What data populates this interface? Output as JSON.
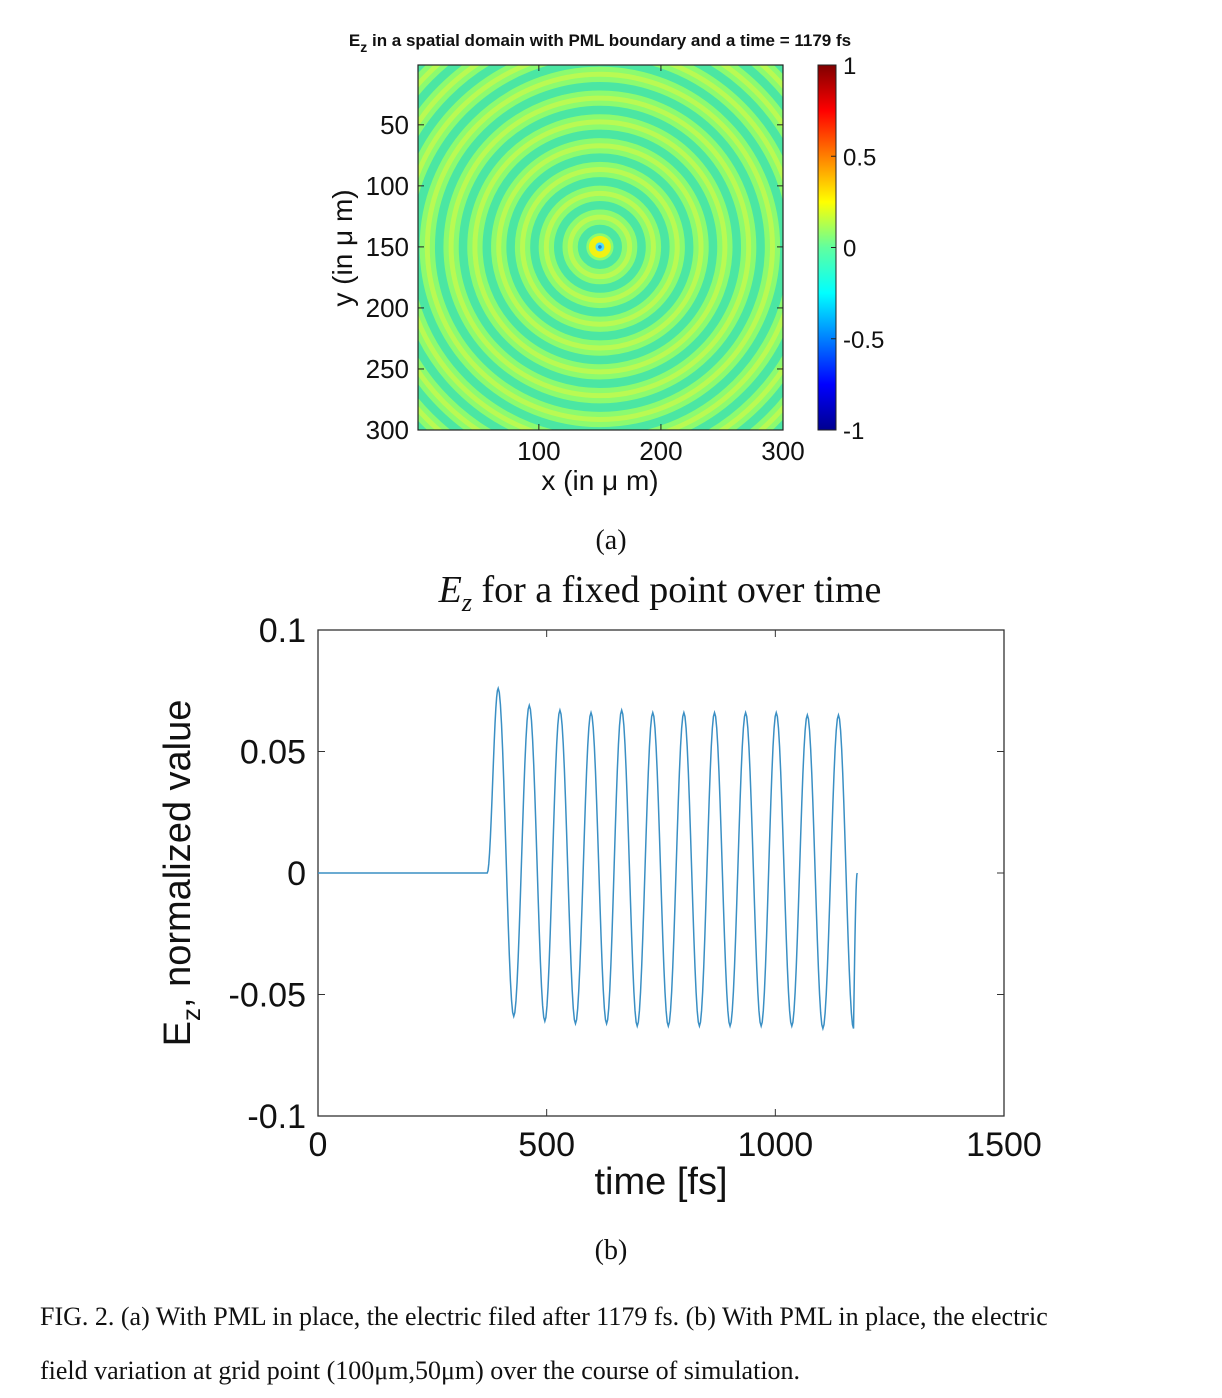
{
  "figure_a": {
    "sublabel": "(a)",
    "chart_data": {
      "type": "heatmap",
      "title_main": "E",
      "title_sub": "z",
      "title_rest": " in a spatial domain with PML boundary and a time = 1179 fs",
      "xlabel": "x (in μ m)",
      "ylabel": "y (in μ m)",
      "xlim": [
        1,
        300
      ],
      "ylim": [
        1,
        300
      ],
      "x_ticks": [
        "100",
        "200",
        "300"
      ],
      "y_ticks": [
        "50",
        "100",
        "150",
        "200",
        "250",
        "300"
      ],
      "source_center": [
        150,
        150
      ],
      "ring_spacing": 19.5,
      "colorbar": {
        "range": [
          -1,
          1
        ],
        "tick_labels": [
          "1",
          "0.5",
          "0",
          "-0.5",
          "-1"
        ],
        "colormap": "jet"
      }
    }
  },
  "figure_b": {
    "sublabel": "(b)",
    "chart_data": {
      "type": "line",
      "title_main": "E",
      "title_sub": "z",
      "title_rest": " for a fixed point over time",
      "xlabel": "time [fs]",
      "ylabel_main": "E",
      "ylabel_sub": "z",
      "ylabel_rest": ", normalized value",
      "xlim": [
        0,
        1500
      ],
      "ylim": [
        -0.1,
        0.1
      ],
      "x_ticks": [
        "0",
        "500",
        "1000",
        "1500"
      ],
      "y_ticks": [
        "0.1",
        "0.05",
        "0",
        "-0.05",
        "-0.1"
      ],
      "line_color": "#3a8fc4",
      "series": [
        {
          "signal_start_fs": 370,
          "signal_end_fs": 1179,
          "period_fs": 67.5,
          "peaks": [
            {
              "x": 394,
              "y": 0.076
            },
            {
              "x": 462,
              "y": 0.069
            },
            {
              "x": 529,
              "y": 0.067
            },
            {
              "x": 597,
              "y": 0.066
            },
            {
              "x": 664,
              "y": 0.067
            },
            {
              "x": 732,
              "y": 0.066
            },
            {
              "x": 800,
              "y": 0.066
            },
            {
              "x": 867,
              "y": 0.066
            },
            {
              "x": 935,
              "y": 0.066
            },
            {
              "x": 1002,
              "y": 0.066
            },
            {
              "x": 1070,
              "y": 0.065
            },
            {
              "x": 1138,
              "y": 0.065
            }
          ],
          "troughs": [
            {
              "x": 428,
              "y": -0.059
            },
            {
              "x": 496,
              "y": -0.061
            },
            {
              "x": 563,
              "y": -0.062
            },
            {
              "x": 631,
              "y": -0.062
            },
            {
              "x": 698,
              "y": -0.063
            },
            {
              "x": 766,
              "y": -0.063
            },
            {
              "x": 834,
              "y": -0.063
            },
            {
              "x": 901,
              "y": -0.063
            },
            {
              "x": 969,
              "y": -0.063
            },
            {
              "x": 1036,
              "y": -0.063
            },
            {
              "x": 1104,
              "y": -0.064
            },
            {
              "x": 1171,
              "y": -0.064
            }
          ]
        }
      ]
    }
  },
  "caption": {
    "line1": "FIG. 2. (a) With PML in place, the electric filed after 1179 fs. (b) With PML in place, the electric",
    "line2": "field variation at grid point (100μm,50μm) over the course of simulation."
  }
}
